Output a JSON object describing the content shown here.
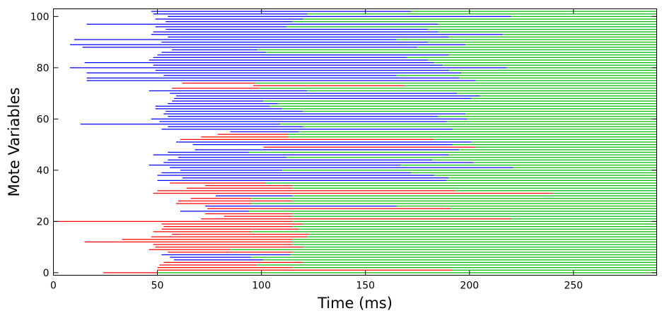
{
  "chart_data": {
    "type": "timeline",
    "xlabel": "Time (ms)",
    "ylabel": "Mote Variables",
    "xlim": [
      0,
      290
    ],
    "ylim": [
      -1,
      103
    ],
    "grid": false,
    "xticks": [
      0,
      50,
      100,
      150,
      200,
      250
    ],
    "yticks": [
      0,
      20,
      40,
      60,
      80,
      100
    ],
    "colors": {
      "red": "#ff0000",
      "blue": "#0000ff",
      "green": "#00bb00",
      "axis": "#000000"
    },
    "intervals": [
      [
        24,
        50,
        "red"
      ],
      [
        50,
        192,
        "red"
      ],
      [
        50,
        115,
        "red"
      ],
      [
        51,
        98,
        "red"
      ],
      [
        53,
        120,
        "red"
      ],
      [
        58,
        101,
        "blue"
      ],
      [
        56,
        95,
        "blue"
      ],
      [
        52,
        114,
        "blue"
      ],
      [
        55,
        115,
        "red"
      ],
      [
        46,
        85,
        "red"
      ],
      [
        49,
        120,
        "red"
      ],
      [
        48,
        115,
        "red"
      ],
      [
        15,
        115,
        "red"
      ],
      [
        33,
        115,
        "red"
      ],
      [
        47,
        122,
        "red"
      ],
      [
        57,
        123,
        "red"
      ],
      [
        48,
        95,
        "red"
      ],
      [
        52,
        118,
        "red"
      ],
      [
        53,
        115,
        "red"
      ],
      [
        52,
        120,
        "red"
      ],
      [
        0,
        115,
        "red"
      ],
      [
        71,
        220,
        "red"
      ],
      [
        82,
        115,
        "red"
      ],
      [
        73,
        115,
        "red"
      ],
      [
        61,
        94,
        "blue"
      ],
      [
        74,
        191,
        "red"
      ],
      [
        73,
        165,
        "blue"
      ],
      [
        59,
        95,
        "red"
      ],
      [
        60,
        115,
        "red"
      ],
      [
        66,
        95,
        "red"
      ],
      [
        78,
        115,
        "blue"
      ],
      [
        48,
        240,
        "red"
      ],
      [
        50,
        193,
        "red"
      ],
      [
        64,
        115,
        "red"
      ],
      [
        73,
        115,
        "red"
      ],
      [
        56,
        102,
        "red"
      ],
      [
        50,
        189,
        "blue"
      ],
      [
        62,
        190,
        "blue"
      ],
      [
        50,
        183,
        "blue"
      ],
      [
        52,
        172,
        "blue"
      ],
      [
        61,
        110,
        "blue"
      ],
      [
        56,
        221,
        "blue"
      ],
      [
        46,
        167,
        "blue"
      ],
      [
        53,
        202,
        "blue"
      ],
      [
        55,
        182,
        "blue"
      ],
      [
        60,
        112,
        "blue"
      ],
      [
        48,
        190,
        "blue"
      ],
      [
        55,
        94,
        "blue"
      ],
      [
        68,
        195,
        "blue"
      ],
      [
        101,
        203,
        "red"
      ],
      [
        67,
        192,
        "blue"
      ],
      [
        59,
        201,
        "blue"
      ],
      [
        61,
        183,
        "red"
      ],
      [
        71,
        113,
        "red"
      ],
      [
        79,
        113,
        "red"
      ],
      [
        85,
        118,
        "blue"
      ],
      [
        52,
        192,
        "blue"
      ],
      [
        55,
        120,
        "blue"
      ],
      [
        13,
        109,
        "blue"
      ],
      [
        51,
        189,
        "blue"
      ],
      [
        47,
        199,
        "blue"
      ],
      [
        55,
        185,
        "blue"
      ],
      [
        53,
        198,
        "blue"
      ],
      [
        54,
        120,
        "blue"
      ],
      [
        49,
        110,
        "blue"
      ],
      [
        49,
        104,
        "blue"
      ],
      [
        55,
        108,
        "blue"
      ],
      [
        57,
        101,
        "blue"
      ],
      [
        58,
        201,
        "blue"
      ],
      [
        59,
        205,
        "blue"
      ],
      [
        56,
        194,
        "blue"
      ],
      [
        46,
        122,
        "blue"
      ],
      [
        57,
        99,
        "red"
      ],
      [
        96,
        169,
        "red"
      ],
      [
        62,
        97,
        "red"
      ],
      [
        16,
        203,
        "blue"
      ],
      [
        16,
        195,
        "blue"
      ],
      [
        53,
        165,
        "blue"
      ],
      [
        16,
        196,
        "blue"
      ],
      [
        49,
        190,
        "blue"
      ],
      [
        8,
        218,
        "blue"
      ],
      [
        48,
        187,
        "blue"
      ],
      [
        15,
        183,
        "blue"
      ],
      [
        46,
        180,
        "blue"
      ],
      [
        48,
        170,
        "blue"
      ],
      [
        50,
        190,
        "blue"
      ],
      [
        52,
        102,
        "blue"
      ],
      [
        57,
        98,
        "blue"
      ],
      [
        14,
        175,
        "blue"
      ],
      [
        8,
        198,
        "blue"
      ],
      [
        52,
        180,
        "blue"
      ],
      [
        10,
        165,
        "blue"
      ],
      [
        55,
        190,
        "blue"
      ],
      [
        47,
        216,
        "blue"
      ],
      [
        48,
        185,
        "blue"
      ],
      [
        54,
        180,
        "blue"
      ],
      [
        49,
        112,
        "blue"
      ],
      [
        16,
        185,
        "blue"
      ],
      [
        54,
        115,
        "blue"
      ],
      [
        49,
        120,
        "blue"
      ],
      [
        55,
        220,
        "blue"
      ],
      [
        48,
        122,
        "blue"
      ],
      [
        47,
        172,
        "blue"
      ]
    ]
  }
}
